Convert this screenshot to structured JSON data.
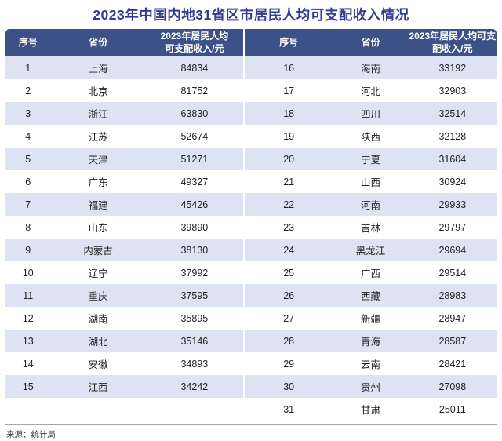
{
  "page": {
    "title": "2023年中国内地31省区市居民人均可支配收入情况",
    "source": "来源：统计局"
  },
  "colors": {
    "title_color": "#323c94",
    "header_bg": "#3c5187",
    "stripe": "#dde3f2",
    "body_text": "#1f1f1f",
    "footer_text": "#3c3c3c",
    "rule": "#a6a6a6"
  },
  "table": {
    "header_left": {
      "index": "序号",
      "province": "省份",
      "income_line1": "2023年居民人均",
      "income_line2": "可支配收入/元"
    },
    "header_right": {
      "index": "序号",
      "province": "省份",
      "income_line1": "2023年居民人均可支",
      "income_line2": "配收入/元"
    }
  },
  "chart_data": {
    "type": "table",
    "title": "2023年中国内地31省区市居民人均可支配收入情况",
    "source": "来源：统计局",
    "columns": [
      "序号",
      "省份",
      "2023年居民人均可支配收入/元"
    ],
    "layout": "split two halves: ranks 1-15 in left table, ranks 16-31 in right table, striped rows",
    "rows": [
      [
        1,
        "上海",
        84834
      ],
      [
        2,
        "北京",
        81752
      ],
      [
        3,
        "浙江",
        63830
      ],
      [
        4,
        "江苏",
        52674
      ],
      [
        5,
        "天津",
        51271
      ],
      [
        6,
        "广东",
        49327
      ],
      [
        7,
        "福建",
        45426
      ],
      [
        8,
        "山东",
        39890
      ],
      [
        9,
        "内蒙古",
        38130
      ],
      [
        10,
        "辽宁",
        37992
      ],
      [
        11,
        "重庆",
        37595
      ],
      [
        12,
        "湖南",
        35895
      ],
      [
        13,
        "湖北",
        35146
      ],
      [
        14,
        "安徽",
        34893
      ],
      [
        15,
        "江西",
        34242
      ],
      [
        16,
        "海南",
        33192
      ],
      [
        17,
        "河北",
        32903
      ],
      [
        18,
        "四川",
        32514
      ],
      [
        19,
        "陕西",
        32128
      ],
      [
        20,
        "宁夏",
        31604
      ],
      [
        21,
        "山西",
        30924
      ],
      [
        22,
        "河南",
        29933
      ],
      [
        23,
        "吉林",
        29797
      ],
      [
        24,
        "黑龙江",
        29694
      ],
      [
        25,
        "广西",
        29514
      ],
      [
        26,
        "西藏",
        28983
      ],
      [
        27,
        "新疆",
        28947
      ],
      [
        28,
        "青海",
        28587
      ],
      [
        29,
        "云南",
        28421
      ],
      [
        30,
        "贵州",
        27098
      ],
      [
        31,
        "甘肃",
        25011
      ]
    ]
  }
}
